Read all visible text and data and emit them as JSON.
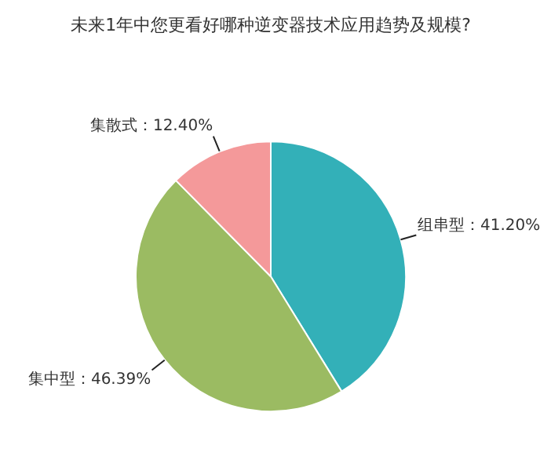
{
  "chart_data": {
    "type": "pie",
    "title": "未来1年中您更看好哪种逆变器技术应用趋势及规模?",
    "categories": [
      "组串型",
      "集中型",
      "集散式"
    ],
    "values": [
      41.2,
      46.39,
      12.4
    ],
    "colors": [
      "#33b0b8",
      "#9bbb62",
      "#f4999a"
    ],
    "value_labels": [
      "41.20%",
      "46.39%",
      "12.40%"
    ]
  }
}
